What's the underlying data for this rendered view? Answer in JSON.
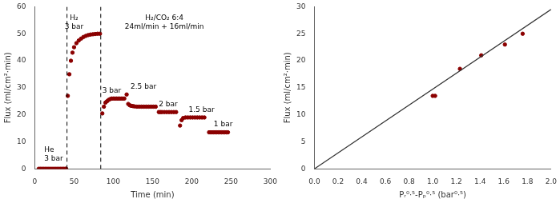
{
  "chart_data": [
    {
      "type": "scatter",
      "xlabel": "Time (min)",
      "ylabel": "Flux (ml/cm²·min)",
      "xlim": [
        0,
        300
      ],
      "ylim": [
        0,
        60
      ],
      "xticks": [
        0,
        50,
        100,
        150,
        200,
        250,
        300
      ],
      "yticks": [
        0,
        10,
        20,
        30,
        40,
        50,
        60
      ],
      "grid": false,
      "series": [
        {
          "type": "scatter",
          "color": "#8B0000",
          "x": [
            5,
            7,
            9,
            11,
            13,
            15,
            17,
            19,
            21,
            23,
            25,
            27,
            29,
            31,
            33,
            35,
            37,
            39,
            40
          ],
          "values": [
            0,
            0,
            0,
            0,
            0,
            0,
            0,
            0,
            0,
            0,
            0,
            0,
            0,
            0,
            0,
            0,
            0,
            0,
            0
          ]
        },
        {
          "type": "scatter",
          "color": "#8B0000",
          "x": [
            42,
            44,
            46,
            48,
            50,
            53,
            56,
            59,
            62,
            65,
            68,
            71,
            74,
            77,
            80,
            83
          ],
          "values": [
            27,
            35,
            40,
            43,
            45,
            46.5,
            47.5,
            48.2,
            48.8,
            49.2,
            49.5,
            49.7,
            49.8,
            49.9,
            50,
            50
          ]
        },
        {
          "type": "scatter",
          "color": "#8B0000",
          "x": [
            86,
            88,
            90,
            92,
            94,
            96,
            98,
            100,
            102,
            104,
            106,
            108,
            110,
            112,
            114
          ],
          "values": [
            20.5,
            23,
            24.5,
            25,
            25.5,
            25.8,
            26,
            26,
            26,
            26,
            26,
            26,
            26,
            26,
            26
          ]
        },
        {
          "type": "scatter",
          "color": "#8B0000",
          "x": [
            117,
            119,
            121,
            123,
            125,
            127,
            130,
            133,
            136,
            139,
            142,
            145,
            148,
            151,
            154
          ],
          "values": [
            27.5,
            24,
            23.5,
            23.3,
            23.2,
            23.1,
            23,
            23,
            23,
            23,
            23,
            23,
            23,
            23,
            23
          ]
        },
        {
          "type": "scatter",
          "color": "#8B0000",
          "x": [
            158,
            160,
            162,
            165,
            168,
            171,
            174,
            177,
            180
          ],
          "values": [
            21,
            21,
            21,
            21,
            21,
            21,
            21,
            21,
            21
          ]
        },
        {
          "type": "scatter",
          "color": "#8B0000",
          "x": [
            185,
            187,
            189,
            192,
            195,
            198,
            201,
            204,
            207,
            210,
            213,
            216
          ],
          "values": [
            16,
            18,
            18.8,
            19,
            19,
            19,
            19,
            19,
            19,
            19,
            19,
            19
          ]
        },
        {
          "type": "scatter",
          "color": "#8B0000",
          "x": [
            222,
            224,
            226,
            228,
            230,
            232,
            234,
            236,
            238,
            240,
            242,
            244,
            246
          ],
          "values": [
            13.5,
            13.5,
            13.5,
            13.5,
            13.5,
            13.5,
            13.5,
            13.5,
            13.5,
            13.5,
            13.5,
            13.5,
            13.5
          ]
        }
      ],
      "vlines": [
        {
          "x": 41,
          "color": "#000000",
          "line_style": "dashed"
        },
        {
          "x": 84,
          "color": "#000000",
          "line_style": "dashed"
        }
      ],
      "annotations": [
        {
          "text": "He\n3 bar",
          "x": 12,
          "y": 2.5
        },
        {
          "text": "H₂\n3 bar",
          "x": 50,
          "y": 57
        },
        {
          "text": "H₂/CO₂ 6:4\n24ml/min + 16ml/min",
          "x": 165,
          "y": 57
        },
        {
          "text": "3 bar",
          "x": 86,
          "y": 27.5
        },
        {
          "text": "2.5 bar",
          "x": 122,
          "y": 29
        },
        {
          "text": "2 bar",
          "x": 158,
          "y": 22.5
        },
        {
          "text": "1.5 bar",
          "x": 196,
          "y": 20.5
        },
        {
          "text": "1 bar",
          "x": 228,
          "y": 15
        }
      ]
    },
    {
      "type": "scatter",
      "xlabel": "Pᵣ⁰·⁵-Pₚ⁰·⁵ (bar⁰·⁵)",
      "ylabel": "Flux (ml/cm²·min)",
      "xlim": [
        0.0,
        2.0
      ],
      "ylim": [
        0,
        30
      ],
      "xticks": [
        {
          "value": 0,
          "label": "0.0"
        },
        0.2,
        0.4,
        0.6,
        0.8,
        {
          "value": 1,
          "label": "1.0"
        },
        1.2,
        1.4,
        1.6,
        1.8,
        {
          "value": 2,
          "label": "2.0"
        }
      ],
      "yticks": [
        0,
        5,
        10,
        15,
        20,
        25,
        30
      ],
      "grid": false,
      "series": [
        {
          "type": "line",
          "color": "#333333",
          "x": [
            0.0,
            2.0
          ],
          "values": [
            0.0,
            29.5
          ]
        },
        {
          "type": "scatter",
          "color": "#8B0000",
          "x": [
            1.0,
            1.02,
            1.23,
            1.41,
            1.61,
            1.76
          ],
          "values": [
            13.5,
            13.5,
            18.5,
            21.0,
            23.0,
            25.0
          ]
        }
      ]
    }
  ]
}
